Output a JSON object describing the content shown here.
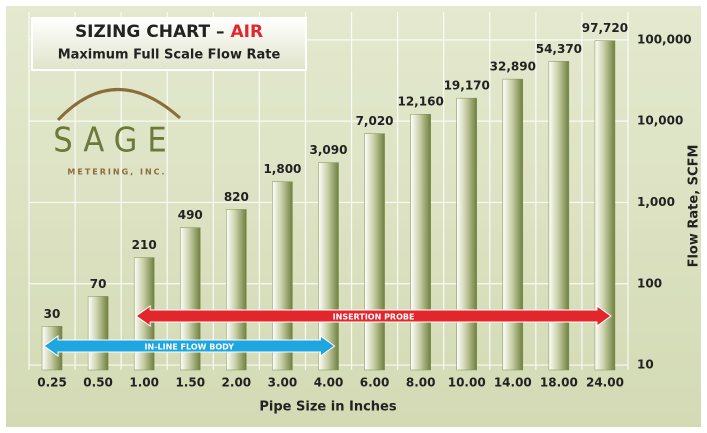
{
  "chart_data": {
    "type": "bar",
    "title": "SIZING CHART –",
    "title_highlight": "AIR",
    "title_highlight_color": "#e3262c",
    "subtitle": "Maximum Full Scale Flow Rate",
    "logo": {
      "name": "SAGE",
      "tagline": "METERING, INC."
    },
    "x_label": "Pipe Size in Inches",
    "y_label": "Flow Rate, SCFM",
    "categories": [
      "0.25",
      "0.50",
      "1.00",
      "1.50",
      "2.00",
      "3.00",
      "4.00",
      "6.00",
      "8.00",
      "10.00",
      "14.00",
      "18.00",
      "24.00"
    ],
    "values": [
      30,
      70,
      210,
      490,
      820,
      1800,
      3090,
      7020,
      12160,
      19170,
      32890,
      54370,
      97720
    ],
    "value_labels": [
      "30",
      "70",
      "210",
      "490",
      "820",
      "1,800",
      "3,090",
      "7,020",
      "12,160",
      "19,170",
      "32,890",
      "54,370",
      "97,720"
    ],
    "color": "#7f8f4e",
    "log_scale": true,
    "ylim": [
      8.7,
      220000
    ],
    "yticks": [
      10,
      100,
      {
        "value": 1000,
        "label": "1,000"
      },
      {
        "value": 10000,
        "label": "10,000"
      },
      {
        "value": 100000,
        "label": "100,000"
      }
    ],
    "grid": true,
    "annotations": [
      {
        "text": "INSERTION PROBE",
        "from": "1.00",
        "to": "24.00",
        "color": "#e3262c"
      },
      {
        "text": "IN-LINE FLOW BODY",
        "from": "0.25",
        "to": "4.00",
        "color": "#1ea6e0"
      }
    ]
  }
}
